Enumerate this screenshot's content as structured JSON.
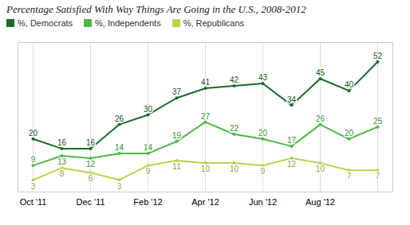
{
  "chart_data": {
    "type": "line",
    "title": "Percentage Satisfied With Way Things Are Going in the U.S., 2008-2012",
    "categories": [
      "Oct '11",
      null,
      "Dec '11",
      null,
      "Feb '12",
      null,
      "Apr '12",
      null,
      "Jun '12",
      null,
      "Aug '12",
      null,
      null
    ],
    "series": [
      {
        "name": "%, Democrats",
        "color": "#1a6b2a",
        "values": [
          20,
          16,
          16,
          26,
          30,
          37,
          41,
          42,
          43,
          34,
          45,
          40,
          52
        ]
      },
      {
        "name": "%, Independents",
        "color": "#4db848",
        "values": [
          9,
          13,
          12,
          14,
          14,
          19,
          27,
          22,
          20,
          17,
          26,
          20,
          25
        ]
      },
      {
        "name": "%, Republicans",
        "color": "#b8d44a",
        "values": [
          3,
          8,
          6,
          3,
          9,
          11,
          10,
          10,
          9,
          12,
          10,
          7,
          7
        ]
      }
    ],
    "ylim": [
      -2,
      60
    ],
    "grid": true,
    "legend": "top-left",
    "data_labels": true,
    "tick_labels": "x",
    "marker": "circle"
  }
}
